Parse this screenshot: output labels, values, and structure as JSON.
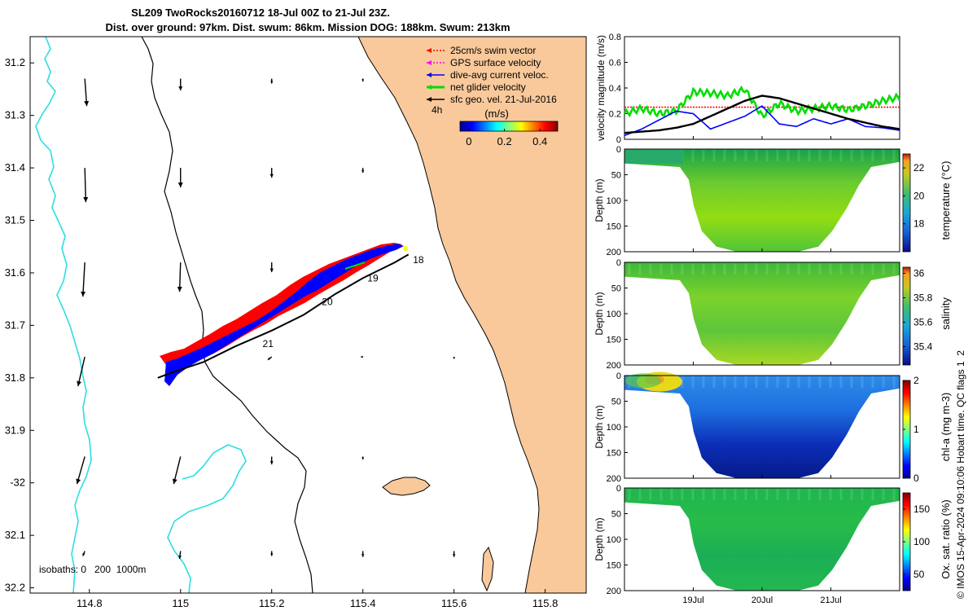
{
  "title": {
    "line1": "SL209 TwoRocks20160712 18-Jul 00Z to 21-Jul 23Z.",
    "line2": "Dist. over ground: 97km. Dist. swum: 86km. Mission DOG: 188km. Swum: 213km"
  },
  "credit": "© IMOS 15-Apr-2024 09:10:06 Hobart time. QC flags 1  2",
  "colors": {
    "land": "#F9C99B",
    "isobath_shallow": "#2EDDE2",
    "track_red": "#FF0000",
    "track_blue": "#0000FF"
  },
  "chart_data": [
    {
      "type": "map",
      "name": "glider-track-map",
      "xlim": [
        114.67,
        115.89
      ],
      "ylim": [
        -32.21,
        -31.15
      ],
      "x_ticks": [
        114.8,
        115,
        115.2,
        115.4,
        115.6,
        115.8
      ],
      "x_tick_labels": [
        "114.8",
        "115",
        "115.2",
        "115.4",
        "115.6",
        "115.8"
      ],
      "y_ticks": [
        -31.2,
        -31.3,
        -31.4,
        -31.5,
        -31.6,
        -31.7,
        -31.8,
        -31.9,
        -32.0,
        -32.1,
        -32.2
      ],
      "y_tick_labels": [
        "31.2",
        "31.3",
        "31.4",
        "31.5",
        "31.6",
        "31.7",
        "31.8",
        "31.9",
        "-32",
        "32.1",
        "32.2"
      ],
      "legend": {
        "position": "top-right",
        "entries": [
          {
            "label": "25cm/s swim vector",
            "color": "#FF0000",
            "style": "dotted"
          },
          {
            "label": "GPS surface velocity",
            "color": "#FF00FF",
            "style": "dotted"
          },
          {
            "label": "dive-avg current veloc.",
            "color": "#0000FF",
            "style": "solid"
          },
          {
            "label": "net glider velocity",
            "color": "#00DD00",
            "style": "solid"
          },
          {
            "label": "sfc geo. vel. 21-Jul-2016",
            "color": "#000000",
            "style": "solid"
          }
        ],
        "scale_label": "4h",
        "colorbar_title": "(m/s)",
        "colorbar_ticks": [
          "0",
          "0.2",
          "0.4"
        ],
        "colorbar_range": [
          -0.05,
          0.5
        ]
      },
      "isobath_label": "isobaths: 0   200  1000m",
      "track": {
        "lon": [
          114.95,
          114.98,
          115.05,
          115.12,
          115.2,
          115.27,
          115.34,
          115.4,
          115.47,
          115.5
        ],
        "lat": [
          -31.8,
          -31.79,
          -31.77,
          -31.74,
          -31.71,
          -31.68,
          -31.64,
          -31.61,
          -31.58,
          -31.565
        ]
      },
      "day_labels": [
        {
          "text": "18",
          "lon": 115.51,
          "lat": -31.575
        },
        {
          "text": "19",
          "lon": 115.41,
          "lat": -31.61
        },
        {
          "text": "20",
          "lon": 115.31,
          "lat": -31.655
        },
        {
          "text": "21",
          "lon": 115.18,
          "lat": -31.735
        }
      ],
      "geostrophic_vectors": [
        {
          "lon": 114.79,
          "lat": -31.23,
          "u": 0.02,
          "v": -0.28
        },
        {
          "lon": 115.0,
          "lat": -31.23,
          "u": 0.0,
          "v": -0.12
        },
        {
          "lon": 115.2,
          "lat": -31.23,
          "u": 0.0,
          "v": -0.05
        },
        {
          "lon": 115.4,
          "lat": -31.23,
          "u": 0.0,
          "v": -0.03
        },
        {
          "lon": 114.79,
          "lat": -31.4,
          "u": 0.01,
          "v": -0.35
        },
        {
          "lon": 115.0,
          "lat": -31.4,
          "u": 0.0,
          "v": -0.2
        },
        {
          "lon": 115.2,
          "lat": -31.4,
          "u": 0.0,
          "v": -0.1
        },
        {
          "lon": 115.4,
          "lat": -31.4,
          "u": 0.0,
          "v": -0.05
        },
        {
          "lon": 114.79,
          "lat": -31.58,
          "u": -0.02,
          "v": -0.35
        },
        {
          "lon": 115.0,
          "lat": -31.58,
          "u": -0.01,
          "v": -0.3
        },
        {
          "lon": 115.2,
          "lat": -31.58,
          "u": 0.0,
          "v": -0.1
        },
        {
          "lon": 114.79,
          "lat": -31.76,
          "u": -0.07,
          "v": -0.3
        },
        {
          "lon": 115.2,
          "lat": -31.76,
          "u": -0.04,
          "v": -0.03
        },
        {
          "lon": 115.4,
          "lat": -31.76,
          "u": -0.02,
          "v": 0.0
        },
        {
          "lon": 115.6,
          "lat": -31.76,
          "u": 0.0,
          "v": -0.02
        },
        {
          "lon": 114.79,
          "lat": -31.95,
          "u": -0.08,
          "v": -0.28
        },
        {
          "lon": 115.0,
          "lat": -31.95,
          "u": -0.07,
          "v": -0.28
        },
        {
          "lon": 115.2,
          "lat": -31.95,
          "u": 0.0,
          "v": -0.08
        },
        {
          "lon": 115.4,
          "lat": -31.95,
          "u": 0.0,
          "v": -0.03
        },
        {
          "lon": 114.79,
          "lat": -32.13,
          "u": -0.02,
          "v": -0.05
        },
        {
          "lon": 115.0,
          "lat": -32.13,
          "u": -0.01,
          "v": -0.08
        },
        {
          "lon": 115.2,
          "lat": -32.13,
          "u": 0.0,
          "v": -0.05
        },
        {
          "lon": 115.4,
          "lat": -32.13,
          "u": 0.0,
          "v": -0.06
        },
        {
          "lon": 115.6,
          "lat": -32.13,
          "u": 0.0,
          "v": -0.06
        }
      ]
    },
    {
      "type": "line",
      "name": "velocity-magnitude-panel",
      "ylabel": "velocity magnitude (m/s)",
      "ylim": [
        0,
        0.8
      ],
      "y_ticks": [
        0,
        0.2,
        0.4,
        0.6,
        0.8
      ],
      "x": [
        0,
        0.25,
        0.5,
        0.75,
        1.0,
        1.25,
        1.5,
        1.75,
        2.0,
        2.25,
        2.5,
        2.75,
        3.0,
        3.25,
        3.5,
        3.75,
        4.0
      ],
      "series": [
        {
          "name": "swim speed",
          "color": "#FF0000",
          "style": "dotted",
          "values": [
            0.25,
            0.25,
            0.25,
            0.25,
            0.25,
            0.25,
            0.25,
            0.25,
            0.25,
            0.25,
            0.25,
            0.25,
            0.25,
            0.25,
            0.25,
            0.25,
            0.25
          ]
        },
        {
          "name": "net glider velocity",
          "color": "#00DD00",
          "style": "solid",
          "values": [
            0.2,
            0.24,
            0.2,
            0.22,
            0.37,
            0.36,
            0.34,
            0.39,
            0.18,
            0.28,
            0.22,
            0.24,
            0.26,
            0.23,
            0.26,
            0.3,
            0.33
          ]
        },
        {
          "name": "dive-avg current veloc.",
          "color": "#0000FF",
          "style": "solid",
          "values": [
            0.03,
            0.08,
            0.15,
            0.22,
            0.2,
            0.08,
            0.13,
            0.18,
            0.26,
            0.12,
            0.1,
            0.16,
            0.12,
            0.16,
            0.1,
            0.09,
            0.07
          ]
        },
        {
          "name": "sfc geo. vel.",
          "color": "#000000",
          "style": "solid",
          "values": [
            0.05,
            0.06,
            0.07,
            0.09,
            0.12,
            0.18,
            0.24,
            0.3,
            0.34,
            0.32,
            0.28,
            0.24,
            0.2,
            0.16,
            0.13,
            0.1,
            0.08
          ]
        }
      ]
    },
    {
      "type": "heatmap",
      "name": "temperature-section",
      "ylabel": "Depth (m)",
      "colorbar_label": "temperature (°C)",
      "ylim": [
        200,
        0
      ],
      "y_ticks": [
        0,
        50,
        100,
        150,
        200
      ],
      "clim": [
        16,
        23
      ],
      "colorbar_ticks": [
        18,
        20,
        22
      ],
      "description_values": {
        "surface_nearshore": 18.5,
        "interior": 20.5,
        "deep_center": 19.5
      }
    },
    {
      "type": "heatmap",
      "name": "salinity-section",
      "ylabel": "Depth (m)",
      "colorbar_label": "salinity",
      "ylim": [
        200,
        0
      ],
      "y_ticks": [
        0,
        50,
        100,
        150,
        200
      ],
      "clim": [
        35.25,
        36.05
      ],
      "colorbar_ticks": [
        35.4,
        35.6,
        35.8,
        36
      ],
      "description_values": {
        "surface": 35.62,
        "interior": 35.7,
        "deep": 35.78
      }
    },
    {
      "type": "heatmap",
      "name": "chla-section",
      "ylabel": "Depth (m)",
      "colorbar_label": "chl-a (mg m-3)",
      "ylim": [
        200,
        0
      ],
      "y_ticks": [
        0,
        50,
        100,
        150,
        200
      ],
      "clim": [
        0,
        2
      ],
      "colorbar_ticks": [
        0,
        1,
        2
      ],
      "description_values": {
        "surface_patch": 1.5,
        "interior": 0.45,
        "deep": 0.1
      }
    },
    {
      "type": "heatmap",
      "name": "oxygen-section",
      "ylabel": "Depth (m)",
      "colorbar_label": "Ox. sat. ratio (%)",
      "ylim": [
        200,
        0
      ],
      "y_ticks": [
        0,
        50,
        100,
        150,
        200
      ],
      "clim": [
        25,
        175
      ],
      "colorbar_ticks": [
        50,
        100,
        150
      ],
      "description_values": {
        "surface": 100,
        "interior": 98
      }
    }
  ],
  "time_axis": {
    "tick_labels": [
      "19Jul",
      "20Jul",
      "21Jul"
    ],
    "tick_days": [
      1,
      2,
      3
    ],
    "range_days": [
      0,
      4
    ]
  }
}
